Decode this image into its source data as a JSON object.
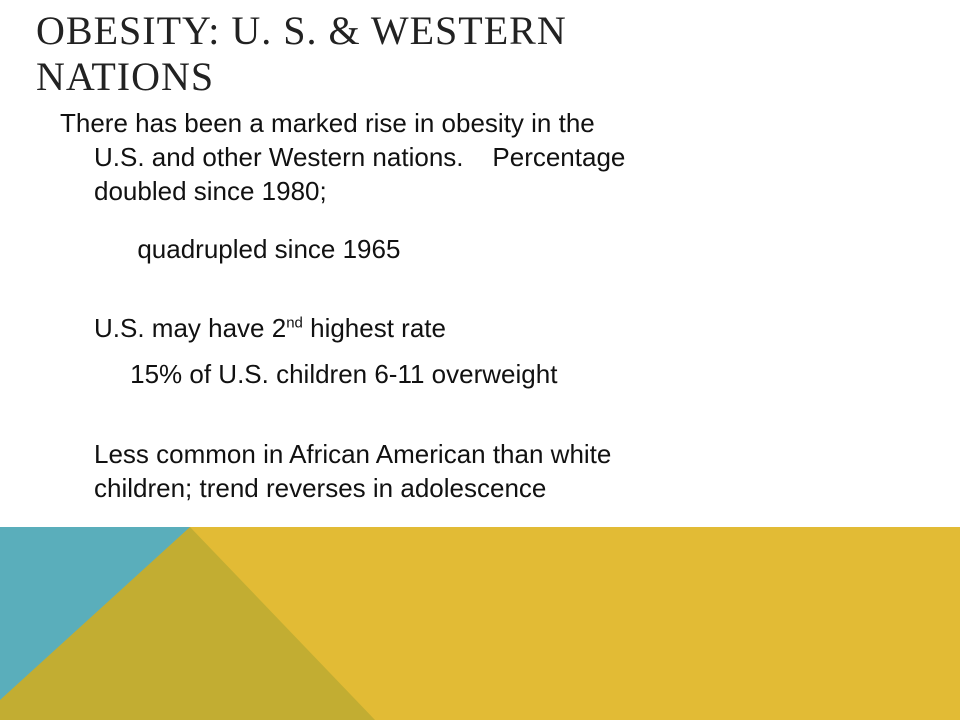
{
  "slide": {
    "title_line1": "OBESITY: U. S. & WESTERN",
    "title_line2": "NATIONS",
    "p1_line1": "There has been a marked rise in obesity in the",
    "p1_line2": "U.S. and other Western nations.    Percentage",
    "p1_line3": "doubled since 1980;",
    "p1_line4": "      quadrupled since 1965",
    "p2_pre": "U.S. may have 2",
    "p2_sup": "nd",
    "p2_post": " highest rate",
    "p2_line2": "     15% of U.S. children 6-11 overweight",
    "p3_line1": "Less common in African American than white",
    "p3_line2": "children; trend reverses in adolescence"
  },
  "colors": {
    "teal": "#5aaebb",
    "olive": "#c2ad32",
    "gold": "#e2bb35"
  }
}
